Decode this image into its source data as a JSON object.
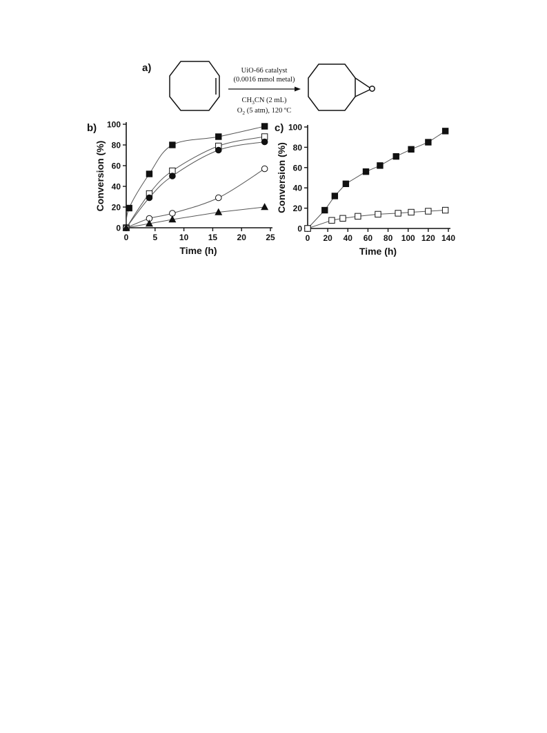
{
  "reaction": {
    "label": "a)",
    "conditions_above": [
      "UiO-66 catalyst",
      "(0.0016 mmol metal)"
    ],
    "conditions_below_1": {
      "prefix": "CH",
      "sub": "3",
      "suffix": "CN (2 mL)"
    },
    "conditions_below_2": {
      "prefix": "O",
      "sub": "2",
      "suffix": " (5 atm), 120 ºC"
    }
  },
  "chart_data": [
    {
      "panel": "b)",
      "type": "scatter",
      "xlabel": "Time (h)",
      "ylabel": "Conversion (%)",
      "xlim": [
        0,
        25
      ],
      "ylim": [
        0,
        100
      ],
      "xticks": [
        0,
        5,
        10,
        15,
        20,
        25
      ],
      "yticks": [
        0,
        20,
        40,
        60,
        80,
        100
      ],
      "series": [
        {
          "marker": "filled-square",
          "fit": "curve",
          "points": [
            [
              0,
              0
            ],
            [
              0.5,
              19
            ],
            [
              4,
              52
            ],
            [
              8,
              80
            ],
            [
              16,
              88
            ],
            [
              24,
              98
            ]
          ]
        },
        {
          "marker": "open-square",
          "fit": "curve",
          "points": [
            [
              0,
              0
            ],
            [
              4,
              33
            ],
            [
              8,
              55
            ],
            [
              16,
              79
            ],
            [
              24,
              88
            ]
          ]
        },
        {
          "marker": "filled-circle",
          "fit": "curve",
          "points": [
            [
              0,
              0
            ],
            [
              4,
              29
            ],
            [
              8,
              50
            ],
            [
              16,
              75
            ],
            [
              24,
              83
            ]
          ]
        },
        {
          "marker": "open-circle",
          "fit": "curve",
          "points": [
            [
              0,
              0
            ],
            [
              4,
              9
            ],
            [
              8,
              14
            ],
            [
              16,
              29
            ],
            [
              24,
              57
            ]
          ]
        },
        {
          "marker": "filled-triangle",
          "fit": "line",
          "points": [
            [
              0,
              0
            ],
            [
              4,
              4
            ],
            [
              8,
              8
            ],
            [
              16,
              15
            ],
            [
              24,
              20
            ]
          ]
        }
      ]
    },
    {
      "panel": "c)",
      "type": "line",
      "xlabel": "Time (h)",
      "ylabel": "Conversion (%)",
      "xlim": [
        0,
        140
      ],
      "ylim": [
        0,
        100
      ],
      "xticks": [
        0,
        20,
        40,
        60,
        80,
        100,
        120,
        140
      ],
      "yticks": [
        0,
        20,
        40,
        60,
        80,
        100
      ],
      "series": [
        {
          "marker": "filled-square",
          "points": [
            [
              0,
              0
            ],
            [
              17,
              18
            ],
            [
              27,
              32
            ],
            [
              38,
              44
            ],
            [
              58,
              56
            ],
            [
              72,
              62
            ],
            [
              88,
              71
            ],
            [
              103,
              78
            ],
            [
              120,
              85
            ],
            [
              137,
              96
            ]
          ]
        },
        {
          "marker": "open-square",
          "points": [
            [
              0,
              0
            ],
            [
              24,
              8
            ],
            [
              35,
              10
            ],
            [
              50,
              12
            ],
            [
              70,
              14
            ],
            [
              90,
              15
            ],
            [
              103,
              16
            ],
            [
              120,
              17
            ],
            [
              137,
              18
            ]
          ]
        }
      ]
    }
  ]
}
